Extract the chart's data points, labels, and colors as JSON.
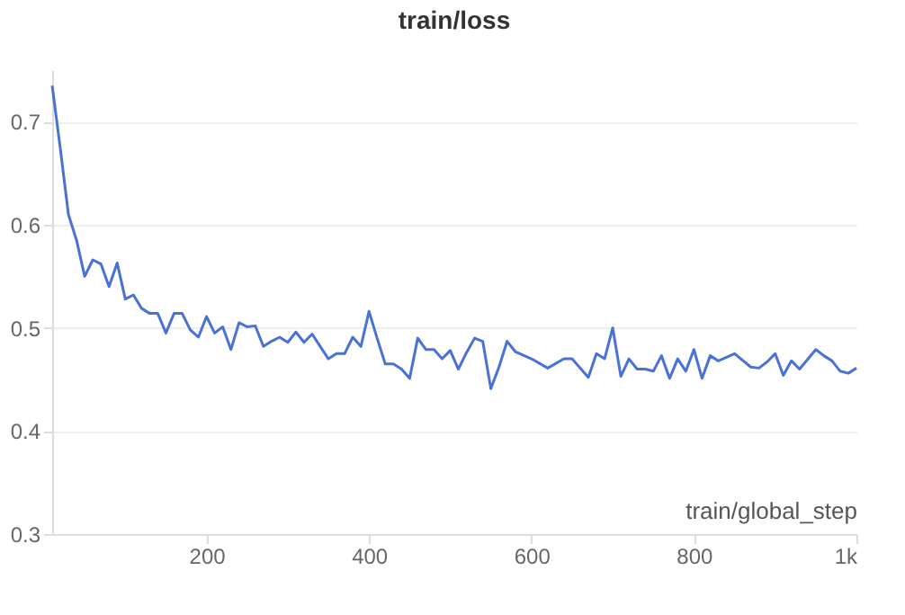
{
  "chart_data": {
    "type": "line",
    "title": "train/loss",
    "xlabel": "train/global_step",
    "xlim": [
      10,
      1000
    ],
    "xticks": [
      200,
      400,
      600,
      800,
      {
        "value": 1000,
        "label": "1k"
      }
    ],
    "ylim": [
      0.3,
      0.75
    ],
    "yticks": [
      0.3,
      0.4,
      0.5,
      0.6,
      0.7
    ],
    "grid": "y",
    "legend": false,
    "series": [
      {
        "color": "#4a72d6",
        "x": [
          10,
          20,
          30,
          40,
          50,
          60,
          70,
          80,
          90,
          100,
          110,
          120,
          130,
          140,
          150,
          160,
          170,
          180,
          190,
          200,
          210,
          220,
          230,
          240,
          250,
          260,
          270,
          280,
          290,
          300,
          310,
          320,
          330,
          340,
          350,
          360,
          370,
          380,
          390,
          400,
          410,
          420,
          430,
          440,
          450,
          460,
          470,
          480,
          490,
          500,
          510,
          520,
          530,
          540,
          550,
          560,
          570,
          580,
          600,
          620,
          640,
          650,
          670,
          680,
          690,
          700,
          710,
          720,
          730,
          740,
          750,
          760,
          770,
          780,
          790,
          800,
          810,
          820,
          830,
          850,
          870,
          880,
          890,
          900,
          910,
          920,
          930,
          950,
          960,
          970,
          980,
          990,
          1000
        ],
        "values": [
          0.735,
          0.674,
          0.61,
          0.585,
          0.55,
          0.566,
          0.562,
          0.54,
          0.563,
          0.528,
          0.532,
          0.519,
          0.514,
          0.514,
          0.495,
          0.514,
          0.514,
          0.498,
          0.491,
          0.511,
          0.495,
          0.501,
          0.479,
          0.505,
          0.501,
          0.502,
          0.482,
          0.487,
          0.491,
          0.486,
          0.496,
          0.486,
          0.494,
          0.482,
          0.47,
          0.475,
          0.475,
          0.491,
          0.482,
          0.516,
          0.49,
          0.465,
          0.465,
          0.46,
          0.451,
          0.49,
          0.479,
          0.479,
          0.47,
          0.478,
          0.46,
          0.476,
          0.49,
          0.487,
          0.441,
          0.462,
          0.487,
          0.477,
          0.47,
          0.461,
          0.47,
          0.47,
          0.452,
          0.475,
          0.47,
          0.5,
          0.453,
          0.47,
          0.46,
          0.46,
          0.458,
          0.473,
          0.451,
          0.47,
          0.458,
          0.479,
          0.451,
          0.473,
          0.468,
          0.475,
          0.462,
          0.461,
          0.467,
          0.475,
          0.454,
          0.468,
          0.46,
          0.479,
          0.473,
          0.468,
          0.458,
          0.456,
          0.461
        ]
      }
    ]
  }
}
